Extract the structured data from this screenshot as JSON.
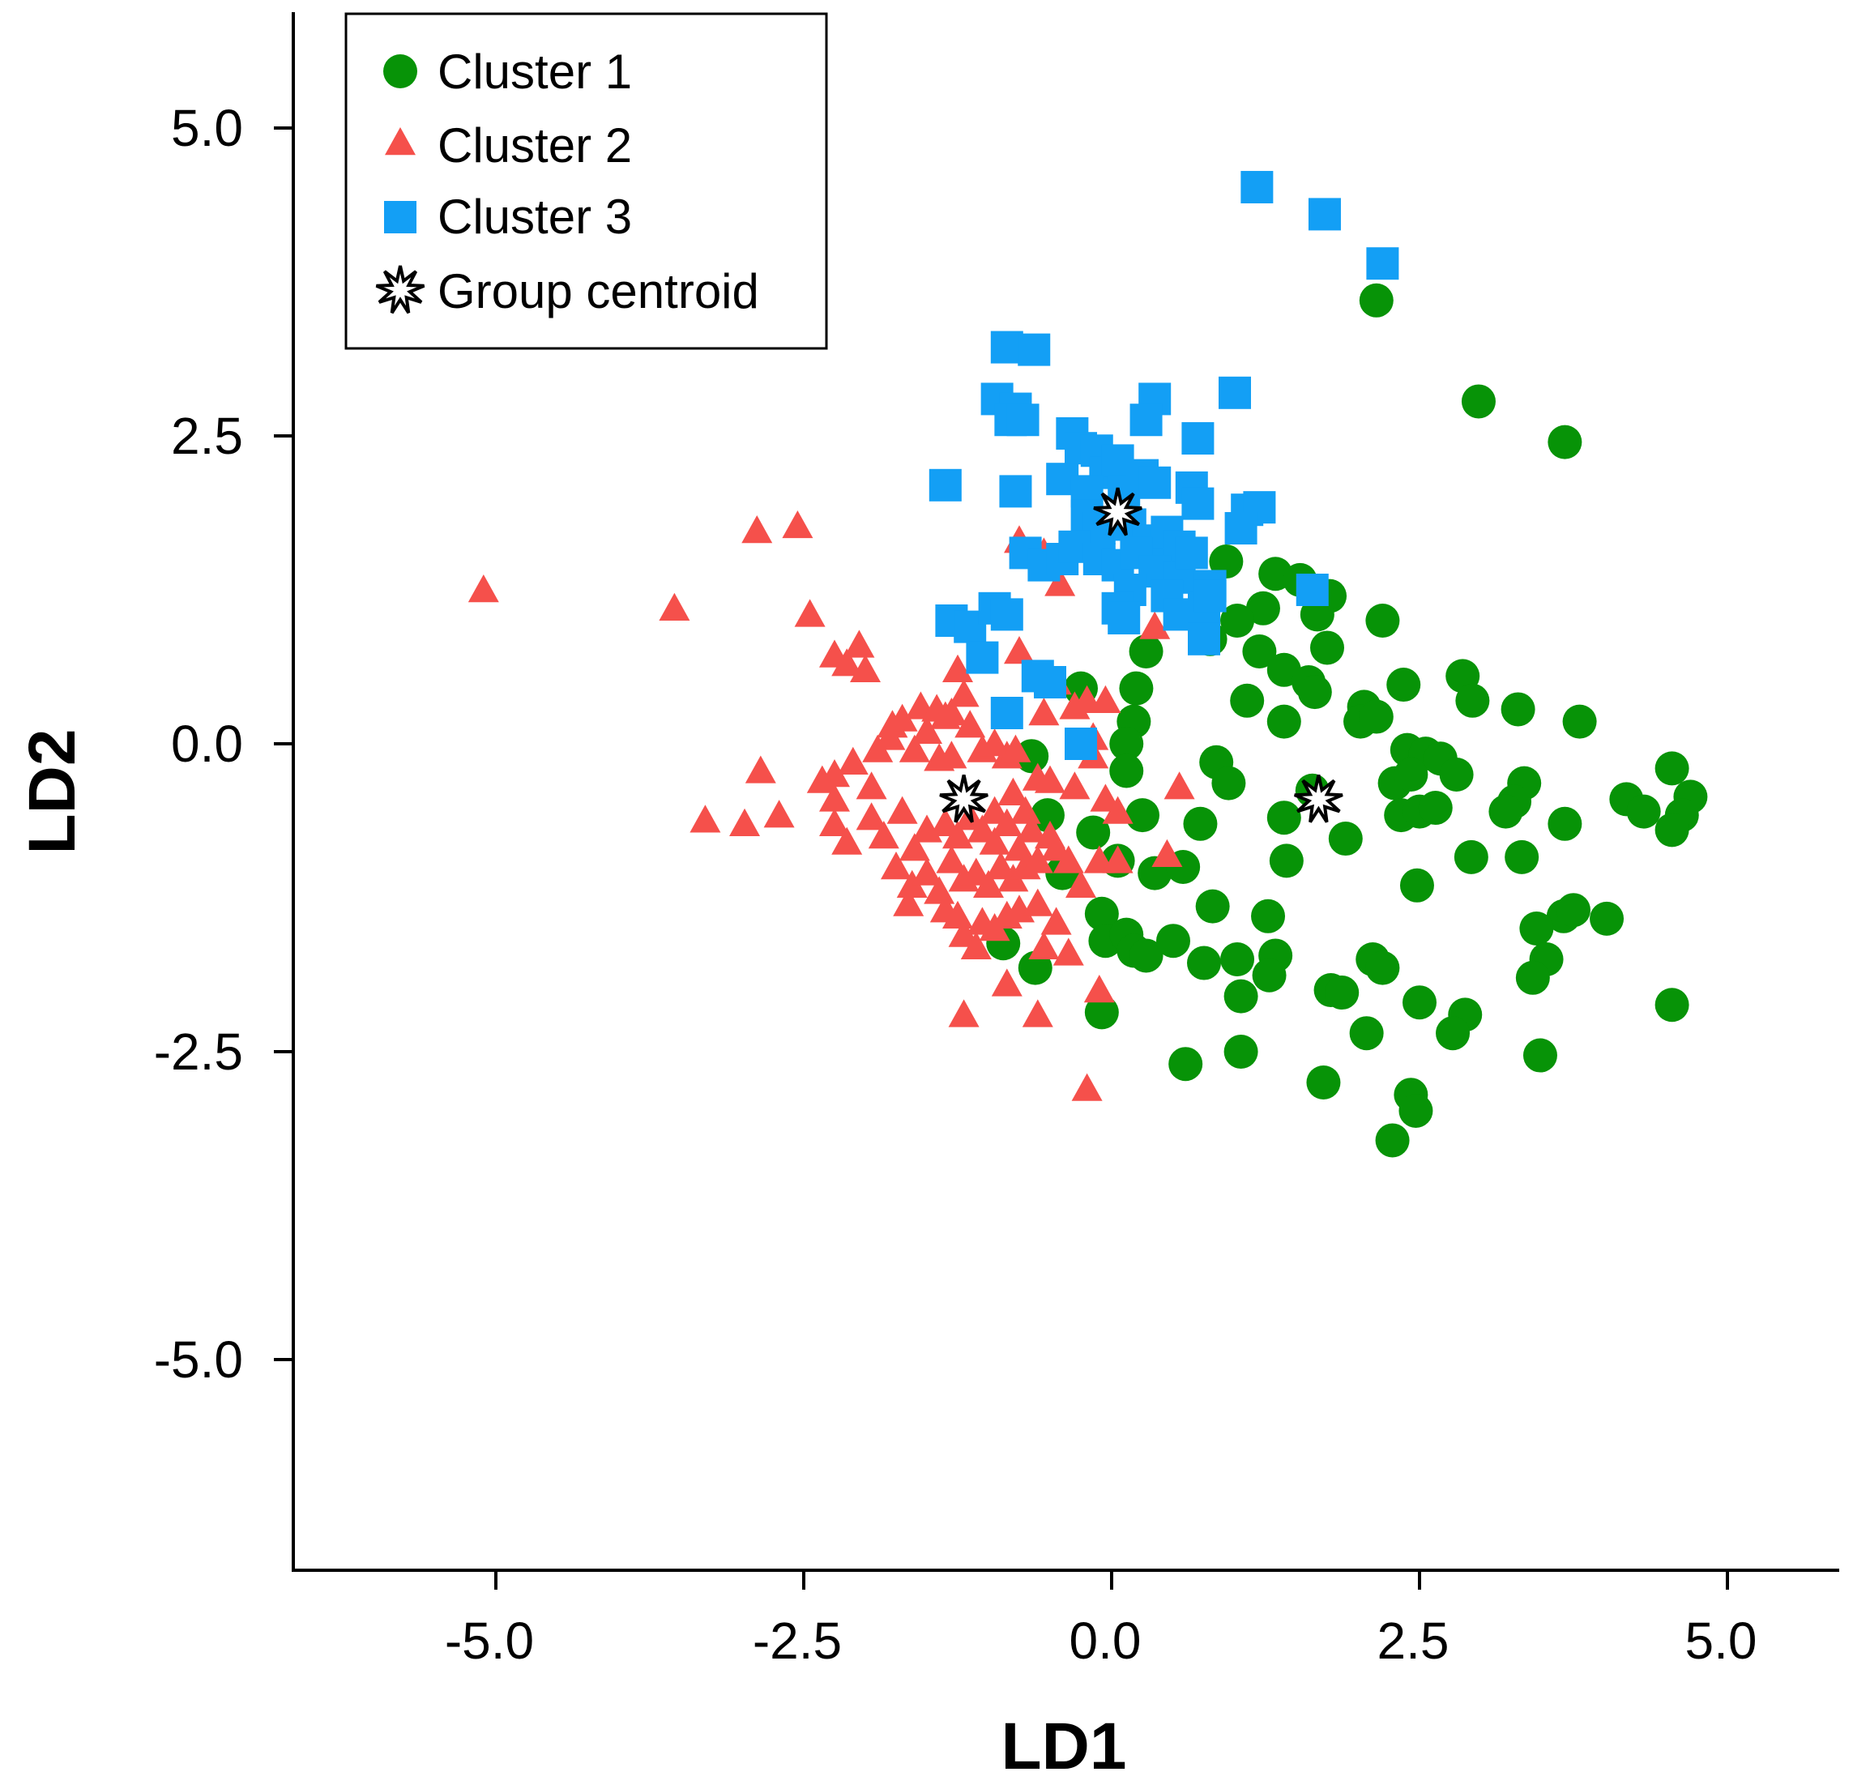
{
  "chart_data": {
    "type": "scatter",
    "title": "",
    "xlabel": "LD1",
    "ylabel": "LD2",
    "xlim": [
      -6.5,
      5.8
    ],
    "ylim": [
      -6.7,
      5.95
    ],
    "xticks": [
      -5.0,
      -2.5,
      0.0,
      2.5,
      5.0
    ],
    "xtick_labels": [
      "-5.0",
      "-2.5",
      "0.0",
      "2.5",
      "5.0"
    ],
    "yticks": [
      5.0,
      2.5,
      0.0,
      -2.5,
      -5.0
    ],
    "ytick_labels": [
      "5.0",
      "2.5",
      "0.0",
      "-2.5",
      "-5.0"
    ],
    "grid": false,
    "legend_position": "top-left",
    "series": [
      {
        "name": "Cluster 1",
        "marker": "circle",
        "color": "#079307",
        "points": [
          [
            2.15,
            3.6
          ],
          [
            2.98,
            2.78
          ],
          [
            3.68,
            2.45
          ],
          [
            0.93,
            1.48
          ],
          [
            1.33,
            1.38
          ],
          [
            1.53,
            1.33
          ],
          [
            1.77,
            1.2
          ],
          [
            2.2,
            1.0
          ],
          [
            1.67,
            1.05
          ],
          [
            1.23,
            1.1
          ],
          [
            1.02,
            1.0
          ],
          [
            0.8,
            0.85
          ],
          [
            1.2,
            0.75
          ],
          [
            1.4,
            0.6
          ],
          [
            1.6,
            0.5
          ],
          [
            1.75,
            0.78
          ],
          [
            0.28,
            0.75
          ],
          [
            -0.25,
            0.45
          ],
          [
            0.2,
            0.45
          ],
          [
            1.1,
            0.35
          ],
          [
            1.4,
            0.18
          ],
          [
            1.65,
            0.42
          ],
          [
            2.05,
            0.3
          ],
          [
            2.37,
            0.48
          ],
          [
            2.85,
            0.55
          ],
          [
            2.93,
            0.35
          ],
          [
            3.3,
            0.28
          ],
          [
            3.8,
            0.18
          ],
          [
            2.02,
            0.18
          ],
          [
            2.15,
            0.22
          ],
          [
            0.18,
            0.18
          ],
          [
            0.12,
            0.0
          ],
          [
            -0.65,
            -0.1
          ],
          [
            0.12,
            -0.22
          ],
          [
            0.85,
            -0.15
          ],
          [
            0.95,
            -0.32
          ],
          [
            2.4,
            -0.05
          ],
          [
            2.55,
            -0.08
          ],
          [
            2.67,
            -0.12
          ],
          [
            2.8,
            -0.25
          ],
          [
            3.35,
            -0.32
          ],
          [
            2.3,
            -0.32
          ],
          [
            2.43,
            -0.25
          ],
          [
            3.27,
            -0.47
          ],
          [
            3.2,
            -0.55
          ],
          [
            4.18,
            -0.45
          ],
          [
            4.55,
            -0.2
          ],
          [
            4.7,
            -0.43
          ],
          [
            4.32,
            -0.55
          ],
          [
            4.63,
            -0.58
          ],
          [
            4.55,
            -0.7
          ],
          [
            -0.52,
            -0.58
          ],
          [
            0.25,
            -0.58
          ],
          [
            0.72,
            -0.65
          ],
          [
            1.4,
            -0.6
          ],
          [
            1.63,
            -0.38
          ],
          [
            1.9,
            -0.77
          ],
          [
            2.35,
            -0.58
          ],
          [
            2.5,
            -0.55
          ],
          [
            2.63,
            -0.52
          ],
          [
            3.68,
            -0.65
          ],
          [
            -0.15,
            -0.72
          ],
          [
            0.05,
            -0.95
          ],
          [
            0.35,
            -1.05
          ],
          [
            0.58,
            -1.0
          ],
          [
            1.42,
            -0.95
          ],
          [
            2.48,
            -1.15
          ],
          [
            2.92,
            -0.92
          ],
          [
            3.33,
            -0.92
          ],
          [
            -0.4,
            -1.05
          ],
          [
            -0.08,
            -1.38
          ],
          [
            0.82,
            -1.32
          ],
          [
            1.27,
            -1.4
          ],
          [
            3.67,
            -1.4
          ],
          [
            3.75,
            -1.35
          ],
          [
            4.02,
            -1.42
          ],
          [
            -0.88,
            -1.62
          ],
          [
            -0.05,
            -1.6
          ],
          [
            0.12,
            -1.55
          ],
          [
            0.18,
            -1.68
          ],
          [
            0.28,
            -1.72
          ],
          [
            0.5,
            -1.6
          ],
          [
            0.75,
            -1.78
          ],
          [
            1.02,
            -1.75
          ],
          [
            1.33,
            -1.72
          ],
          [
            1.28,
            -1.88
          ],
          [
            2.12,
            -1.75
          ],
          [
            2.2,
            -1.82
          ],
          [
            3.45,
            -1.5
          ],
          [
            3.53,
            -1.75
          ],
          [
            3.42,
            -1.9
          ],
          [
            -0.62,
            -1.82
          ],
          [
            1.05,
            -2.05
          ],
          [
            1.78,
            -2.0
          ],
          [
            1.87,
            -2.02
          ],
          [
            2.5,
            -2.1
          ],
          [
            2.87,
            -2.2
          ],
          [
            -0.08,
            -2.18
          ],
          [
            2.07,
            -2.35
          ],
          [
            2.77,
            -2.35
          ],
          [
            4.55,
            -2.12
          ],
          [
            0.6,
            -2.6
          ],
          [
            1.05,
            -2.5
          ],
          [
            3.48,
            -2.53
          ],
          [
            1.72,
            -2.75
          ],
          [
            2.43,
            -2.85
          ],
          [
            2.47,
            -2.98
          ],
          [
            2.28,
            -3.22
          ]
        ]
      },
      {
        "name": "Cluster 2",
        "marker": "triangle",
        "color": "#f5504b",
        "points": [
          [
            -5.1,
            1.25
          ],
          [
            -3.55,
            1.1
          ],
          [
            -2.88,
            1.73
          ],
          [
            -2.55,
            1.77
          ],
          [
            -2.45,
            1.05
          ],
          [
            -2.25,
            0.72
          ],
          [
            -2.05,
            0.8
          ],
          [
            -2.15,
            0.65
          ],
          [
            -2.0,
            0.6
          ],
          [
            -1.78,
            0.15
          ],
          [
            -1.7,
            0.2
          ],
          [
            -1.55,
            0.3
          ],
          [
            -1.42,
            0.28
          ],
          [
            -1.35,
            0.22
          ],
          [
            -1.25,
            0.6
          ],
          [
            -1.15,
            0.15
          ],
          [
            -1.8,
            0.05
          ],
          [
            -1.9,
            -0.05
          ],
          [
            -2.1,
            -0.15
          ],
          [
            -2.25,
            -0.25
          ],
          [
            -2.35,
            -0.3
          ],
          [
            -2.25,
            -0.45
          ],
          [
            -1.95,
            -0.35
          ],
          [
            -1.6,
            -0.05
          ],
          [
            -1.4,
            -0.12
          ],
          [
            -1.3,
            -0.1
          ],
          [
            -1.05,
            -0.05
          ],
          [
            -0.95,
            0.0
          ],
          [
            -0.85,
            -0.1
          ],
          [
            -0.78,
            -0.05
          ],
          [
            -0.6,
            -0.28
          ],
          [
            -0.8,
            -0.4
          ],
          [
            -0.95,
            -0.55
          ],
          [
            -0.7,
            -0.55
          ],
          [
            -0.5,
            -0.3
          ],
          [
            -0.3,
            -0.35
          ],
          [
            -0.15,
            -0.1
          ],
          [
            -0.05,
            -0.45
          ],
          [
            0.05,
            -0.55
          ],
          [
            0.55,
            -0.35
          ],
          [
            -2.85,
            -0.22
          ],
          [
            -3.3,
            -0.62
          ],
          [
            -2.98,
            -0.65
          ],
          [
            -2.7,
            -0.58
          ],
          [
            -2.25,
            -0.65
          ],
          [
            -2.15,
            -0.8
          ],
          [
            -1.95,
            -0.6
          ],
          [
            -1.85,
            -0.75
          ],
          [
            -1.7,
            -0.55
          ],
          [
            -1.6,
            -0.85
          ],
          [
            -1.5,
            -0.7
          ],
          [
            -1.35,
            -0.65
          ],
          [
            -1.25,
            -0.75
          ],
          [
            -1.15,
            -0.6
          ],
          [
            -1.05,
            -0.7
          ],
          [
            -0.95,
            -0.8
          ],
          [
            -0.85,
            -0.65
          ],
          [
            -0.75,
            -0.85
          ],
          [
            -0.65,
            -0.7
          ],
          [
            -0.5,
            -0.75
          ],
          [
            -1.75,
            -1.0
          ],
          [
            -1.62,
            -1.15
          ],
          [
            -1.5,
            -1.05
          ],
          [
            -1.4,
            -1.2
          ],
          [
            -1.3,
            -0.95
          ],
          [
            -1.2,
            -1.1
          ],
          [
            -1.1,
            -1.05
          ],
          [
            -1.0,
            -1.15
          ],
          [
            -0.9,
            -1.0
          ],
          [
            -0.8,
            -1.1
          ],
          [
            -0.7,
            -1.0
          ],
          [
            -0.6,
            -0.95
          ],
          [
            -0.45,
            -0.85
          ],
          [
            -0.35,
            -0.95
          ],
          [
            -0.25,
            -1.15
          ],
          [
            -0.1,
            -0.95
          ],
          [
            0.05,
            -0.95
          ],
          [
            0.45,
            -0.9
          ],
          [
            -1.65,
            -1.3
          ],
          [
            -1.35,
            -1.35
          ],
          [
            -1.25,
            -1.4
          ],
          [
            -1.05,
            -1.45
          ],
          [
            -0.95,
            -1.5
          ],
          [
            -0.85,
            -1.4
          ],
          [
            -0.75,
            -1.35
          ],
          [
            -0.6,
            -1.3
          ],
          [
            -0.45,
            -1.45
          ],
          [
            -1.2,
            -1.55
          ],
          [
            -1.1,
            -1.65
          ],
          [
            -0.55,
            -1.65
          ],
          [
            -0.35,
            -1.7
          ],
          [
            -0.85,
            -1.95
          ],
          [
            -1.2,
            -2.2
          ],
          [
            -0.6,
            -2.2
          ],
          [
            -0.1,
            -2.0
          ],
          [
            -0.2,
            -2.8
          ],
          [
            -0.75,
            0.75
          ],
          [
            -0.45,
            0.5
          ],
          [
            -0.3,
            0.3
          ],
          [
            -0.2,
            0.35
          ],
          [
            0.35,
            0.95
          ],
          [
            -0.15,
            0.05
          ],
          [
            -0.05,
            0.35
          ],
          [
            -0.42,
            1.3
          ],
          [
            -0.75,
            1.65
          ],
          [
            -0.55,
            1.55
          ],
          [
            -1.2,
            0.4
          ],
          [
            -1.3,
            0.25
          ],
          [
            -1.5,
            0.1
          ],
          [
            -0.55,
            0.25
          ],
          [
            0.1,
            2.15
          ]
        ]
      },
      {
        "name": "Cluster 3",
        "marker": "square",
        "color": "#139ff5",
        "points": [
          [
            1.18,
            4.52
          ],
          [
            1.73,
            4.3
          ],
          [
            2.2,
            3.9
          ],
          [
            -0.85,
            3.22
          ],
          [
            -0.63,
            3.2
          ],
          [
            -0.93,
            2.8
          ],
          [
            -0.78,
            2.72
          ],
          [
            -0.82,
            2.63
          ],
          [
            -0.72,
            2.63
          ],
          [
            0.35,
            2.8
          ],
          [
            0.28,
            2.63
          ],
          [
            0.7,
            2.48
          ],
          [
            1.0,
            2.85
          ],
          [
            -0.32,
            2.52
          ],
          [
            -0.25,
            2.4
          ],
          [
            -0.12,
            2.38
          ],
          [
            -0.05,
            2.2
          ],
          [
            0.05,
            2.3
          ],
          [
            -0.4,
            2.15
          ],
          [
            -0.2,
            2.05
          ],
          [
            0.1,
            2.05
          ],
          [
            0.25,
            2.18
          ],
          [
            0.35,
            2.12
          ],
          [
            0.65,
            2.08
          ],
          [
            0.7,
            1.95
          ],
          [
            1.1,
            1.9
          ],
          [
            1.2,
            1.92
          ],
          [
            -1.35,
            2.1
          ],
          [
            -0.78,
            2.05
          ],
          [
            -0.2,
            1.85
          ],
          [
            -0.1,
            1.75
          ],
          [
            0.15,
            1.78
          ],
          [
            0.3,
            1.65
          ],
          [
            0.45,
            1.72
          ],
          [
            0.55,
            1.6
          ],
          [
            1.05,
            1.75
          ],
          [
            -0.7,
            1.55
          ],
          [
            -0.55,
            1.45
          ],
          [
            -0.4,
            1.5
          ],
          [
            -0.3,
            1.6
          ],
          [
            -0.1,
            1.5
          ],
          [
            0.05,
            1.45
          ],
          [
            0.2,
            1.55
          ],
          [
            0.35,
            1.4
          ],
          [
            0.55,
            1.35
          ],
          [
            0.65,
            1.55
          ],
          [
            0.8,
            1.28
          ],
          [
            0.15,
            1.25
          ],
          [
            0.45,
            1.2
          ],
          [
            0.55,
            1.05
          ],
          [
            0.75,
            1.1
          ],
          [
            0.8,
            1.2
          ],
          [
            0.05,
            1.1
          ],
          [
            0.1,
            1.02
          ],
          [
            1.63,
            1.25
          ],
          [
            -1.3,
            1.0
          ],
          [
            -1.15,
            0.95
          ],
          [
            -0.95,
            1.1
          ],
          [
            -0.85,
            1.05
          ],
          [
            -1.05,
            0.7
          ],
          [
            -0.6,
            0.55
          ],
          [
            -0.5,
            0.5
          ],
          [
            -0.85,
            0.25
          ],
          [
            0.75,
            0.85
          ],
          [
            -0.25,
            0.0
          ]
        ]
      },
      {
        "name": "Group centroid",
        "marker": "star",
        "color": "#000000",
        "points": [
          [
            0.05,
            1.88
          ],
          [
            -1.2,
            -0.45
          ],
          [
            1.68,
            -0.45
          ]
        ]
      }
    ]
  }
}
